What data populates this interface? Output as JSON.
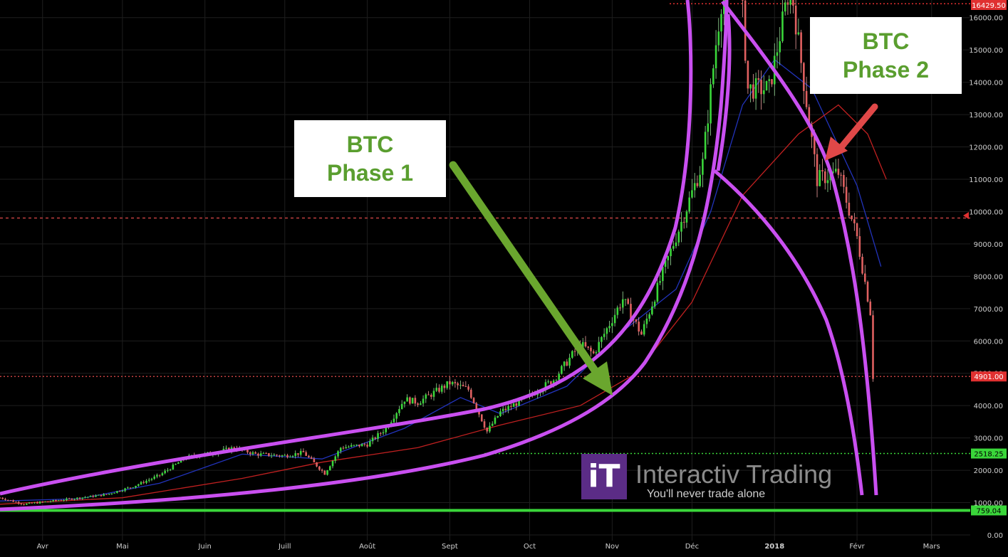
{
  "chart_data": {
    "type": "candlestick",
    "instrument": "BTC",
    "y_axis": {
      "range": [
        0,
        16500
      ],
      "ticks": [
        "16000.00",
        "15000.00",
        "14000.00",
        "13000.00",
        "12000.00",
        "11000.00",
        "10000.00",
        "9000.00",
        "8000.00",
        "7000.00",
        "6000.00",
        "5000.00",
        "4000.00",
        "3000.00",
        "2000.00",
        "1000.00",
        "0.00"
      ]
    },
    "x_axis": {
      "ticks": [
        "Avr",
        "Mai",
        "Juin",
        "Juill",
        "Août",
        "Sept",
        "Oct",
        "Nov",
        "Déc",
        "2018",
        "Févr",
        "Mars"
      ],
      "range": [
        "2017-03-16",
        "2018-03-15"
      ]
    },
    "price_markers": [
      {
        "label": "16429.50",
        "value": 16429.5,
        "color": "#e03030"
      },
      {
        "label": "4901.00",
        "value": 4901,
        "color": "#e03030"
      },
      {
        "label": "2518.25",
        "value": 2518.25,
        "color": "#3ad63a"
      },
      {
        "label": "759.04",
        "value": 759.04,
        "color": "#3ad63a"
      }
    ],
    "horizontal_levels": [
      {
        "value": 16429.5,
        "color": "#e03030",
        "style": "dotted"
      },
      {
        "value": 9800,
        "color": "#c04040",
        "style": "dashed"
      },
      {
        "value": 4901,
        "color": "#c04040",
        "style": "dotted"
      },
      {
        "value": 2518.25,
        "color": "#3ad63a",
        "style": "dotted"
      },
      {
        "value": 759.04,
        "color": "#3ad63a",
        "style": "solid"
      }
    ],
    "price_path": [
      [
        "2017-03-16",
        1150
      ],
      [
        "2017-03-25",
        950
      ],
      [
        "2017-04-10",
        1100
      ],
      [
        "2017-04-25",
        1250
      ],
      [
        "2017-05-05",
        1500
      ],
      [
        "2017-05-15",
        1850
      ],
      [
        "2017-05-25",
        2400
      ],
      [
        "2017-06-05",
        2550
      ],
      [
        "2017-06-12",
        2700
      ],
      [
        "2017-06-20",
        2500
      ],
      [
        "2017-07-01",
        2450
      ],
      [
        "2017-07-08",
        2550
      ],
      [
        "2017-07-16",
        1900
      ],
      [
        "2017-07-22",
        2700
      ],
      [
        "2017-08-01",
        2800
      ],
      [
        "2017-08-08",
        3300
      ],
      [
        "2017-08-15",
        4200
      ],
      [
        "2017-08-20",
        4100
      ],
      [
        "2017-09-01",
        4700
      ],
      [
        "2017-09-08",
        4500
      ],
      [
        "2017-09-15",
        3200
      ],
      [
        "2017-09-20",
        3800
      ],
      [
        "2017-10-01",
        4300
      ],
      [
        "2017-10-10",
        4800
      ],
      [
        "2017-10-20",
        5900
      ],
      [
        "2017-10-25",
        5600
      ],
      [
        "2017-11-05",
        7300
      ],
      [
        "2017-11-12",
        6200
      ],
      [
        "2017-11-20",
        8100
      ],
      [
        "2017-11-28",
        9900
      ],
      [
        "2017-12-05",
        11500
      ],
      [
        "2017-12-10",
        15200
      ],
      [
        "2017-12-12",
        16500
      ],
      [
        "2017-12-17",
        19700
      ],
      [
        "2017-12-22",
        13800
      ],
      [
        "2017-12-30",
        13800
      ],
      [
        "2018-01-07",
        17100
      ],
      [
        "2018-01-12",
        14000
      ],
      [
        "2018-01-17",
        11000
      ],
      [
        "2018-01-25",
        11200
      ],
      [
        "2018-02-01",
        9200
      ],
      [
        "2018-02-06",
        6900
      ],
      [
        "2018-02-07",
        4901
      ]
    ],
    "moving_averages": [
      {
        "color": "#2233bb",
        "points": [
          [
            "2017-03-16",
            1050
          ],
          [
            "2017-04-15",
            1120
          ],
          [
            "2017-05-15",
            1600
          ],
          [
            "2017-06-15",
            2500
          ],
          [
            "2017-07-15",
            2350
          ],
          [
            "2017-08-15",
            3300
          ],
          [
            "2017-09-05",
            4250
          ],
          [
            "2017-09-20",
            3750
          ],
          [
            "2017-10-15",
            4600
          ],
          [
            "2017-11-05",
            6300
          ],
          [
            "2017-11-25",
            7600
          ],
          [
            "2017-12-08",
            10000
          ],
          [
            "2017-12-20",
            13300
          ],
          [
            "2018-01-01",
            14700
          ],
          [
            "2018-01-15",
            13800
          ],
          [
            "2018-02-01",
            10800
          ],
          [
            "2018-02-10",
            8300
          ]
        ]
      },
      {
        "color": "#c02020",
        "points": [
          [
            "2017-03-16",
            950
          ],
          [
            "2017-05-01",
            1150
          ],
          [
            "2017-06-15",
            1750
          ],
          [
            "2017-07-15",
            2250
          ],
          [
            "2017-08-20",
            2700
          ],
          [
            "2017-09-20",
            3400
          ],
          [
            "2017-10-20",
            4000
          ],
          [
            "2017-11-10",
            5000
          ],
          [
            "2017-12-01",
            7200
          ],
          [
            "2017-12-20",
            10500
          ],
          [
            "2018-01-10",
            12400
          ],
          [
            "2018-01-25",
            13300
          ],
          [
            "2018-02-05",
            12400
          ],
          [
            "2018-02-12",
            11000
          ]
        ]
      }
    ]
  },
  "annotations": {
    "phase1": {
      "line1": "BTC",
      "line2": "Phase 1"
    },
    "phase2": {
      "line1": "BTC",
      "line2": "Phase 2"
    }
  },
  "watermark": {
    "name": "Interactiv Trading",
    "tagline": "You'll never trade alone",
    "mark": "iT"
  },
  "colors": {
    "background": "#000000",
    "bull_candle": "#3ad63a",
    "bear_candle": "#e06060",
    "trend_curves": "#c94ff0",
    "arrow_phase1": "#6aa62e",
    "arrow_phase2": "#e04848",
    "grid": "#1e1e1e"
  }
}
